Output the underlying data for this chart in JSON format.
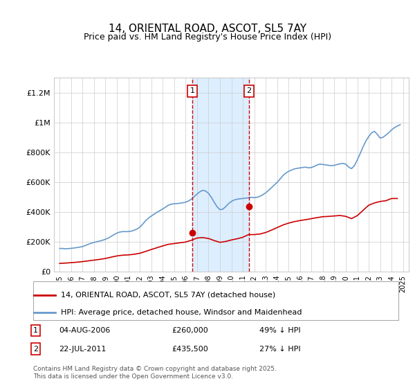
{
  "title": "14, ORIENTAL ROAD, ASCOT, SL5 7AY",
  "subtitle": "Price paid vs. HM Land Registry's House Price Index (HPI)",
  "ylabel": "",
  "xlabel": "",
  "ylim": [
    0,
    1300000
  ],
  "yticks": [
    0,
    200000,
    400000,
    600000,
    800000,
    1000000,
    1200000
  ],
  "ytick_labels": [
    "£0",
    "£200K",
    "£400K",
    "£600K",
    "£800K",
    "£1M",
    "£1.2M"
  ],
  "sale1_date": 2006.58,
  "sale1_price": 260000,
  "sale1_label": "1",
  "sale2_date": 2011.55,
  "sale2_price": 435500,
  "sale2_label": "2",
  "line_red_color": "#cc0000",
  "line_blue_color": "#6699cc",
  "shade_color": "#ddeeff",
  "vline_color": "#cc0000",
  "legend_entry1": "14, ORIENTAL ROAD, ASCOT, SL5 7AY (detached house)",
  "legend_entry2": "HPI: Average price, detached house, Windsor and Maidenhead",
  "annotation1": "1    04-AUG-2006         £260,000         49% ↓ HPI",
  "annotation2": "2    22-JUL-2011           £435,500         27% ↓ HPI",
  "footer": "Contains HM Land Registry data © Crown copyright and database right 2025.\nThis data is licensed under the Open Government Licence v3.0.",
  "background_color": "#ffffff",
  "grid_color": "#cccccc",
  "hpi_data_x": [
    1995.0,
    1995.25,
    1995.5,
    1995.75,
    1996.0,
    1996.25,
    1996.5,
    1996.75,
    1997.0,
    1997.25,
    1997.5,
    1997.75,
    1998.0,
    1998.25,
    1998.5,
    1998.75,
    1999.0,
    1999.25,
    1999.5,
    1999.75,
    2000.0,
    2000.25,
    2000.5,
    2000.75,
    2001.0,
    2001.25,
    2001.5,
    2001.75,
    2002.0,
    2002.25,
    2002.5,
    2002.75,
    2003.0,
    2003.25,
    2003.5,
    2003.75,
    2004.0,
    2004.25,
    2004.5,
    2004.75,
    2005.0,
    2005.25,
    2005.5,
    2005.75,
    2006.0,
    2006.25,
    2006.5,
    2006.75,
    2007.0,
    2007.25,
    2007.5,
    2007.75,
    2008.0,
    2008.25,
    2008.5,
    2008.75,
    2009.0,
    2009.25,
    2009.5,
    2009.75,
    2010.0,
    2010.25,
    2010.5,
    2010.75,
    2011.0,
    2011.25,
    2011.5,
    2011.75,
    2012.0,
    2012.25,
    2012.5,
    2012.75,
    2013.0,
    2013.25,
    2013.5,
    2013.75,
    2014.0,
    2014.25,
    2014.5,
    2014.75,
    2015.0,
    2015.25,
    2015.5,
    2015.75,
    2016.0,
    2016.25,
    2016.5,
    2016.75,
    2017.0,
    2017.25,
    2017.5,
    2017.75,
    2018.0,
    2018.25,
    2018.5,
    2018.75,
    2019.0,
    2019.25,
    2019.5,
    2019.75,
    2020.0,
    2020.25,
    2020.5,
    2020.75,
    2021.0,
    2021.25,
    2021.5,
    2021.75,
    2022.0,
    2022.25,
    2022.5,
    2022.75,
    2023.0,
    2023.25,
    2023.5,
    2023.75,
    2024.0,
    2024.25,
    2024.5,
    2024.75
  ],
  "hpi_data_y": [
    155000,
    155000,
    153000,
    154000,
    156000,
    158000,
    161000,
    164000,
    168000,
    175000,
    183000,
    190000,
    196000,
    200000,
    205000,
    210000,
    217000,
    225000,
    236000,
    248000,
    258000,
    265000,
    268000,
    268000,
    268000,
    271000,
    277000,
    285000,
    298000,
    318000,
    340000,
    358000,
    372000,
    385000,
    398000,
    408000,
    420000,
    432000,
    445000,
    452000,
    455000,
    456000,
    458000,
    461000,
    465000,
    473000,
    485000,
    502000,
    520000,
    535000,
    545000,
    540000,
    525000,
    498000,
    465000,
    435000,
    415000,
    418000,
    435000,
    455000,
    470000,
    480000,
    485000,
    488000,
    490000,
    492000,
    495000,
    498000,
    495000,
    498000,
    505000,
    515000,
    528000,
    545000,
    562000,
    580000,
    598000,
    620000,
    643000,
    660000,
    672000,
    680000,
    688000,
    692000,
    695000,
    698000,
    700000,
    695000,
    698000,
    705000,
    715000,
    720000,
    718000,
    715000,
    712000,
    710000,
    712000,
    718000,
    722000,
    725000,
    720000,
    700000,
    690000,
    710000,
    748000,
    790000,
    835000,
    875000,
    905000,
    930000,
    940000,
    920000,
    895000,
    900000,
    915000,
    930000,
    950000,
    965000,
    975000,
    985000
  ],
  "red_data_x": [
    1995.0,
    1995.5,
    1996.0,
    1996.5,
    1997.0,
    1997.5,
    1998.0,
    1998.5,
    1999.0,
    1999.5,
    2000.0,
    2000.5,
    2001.0,
    2001.5,
    2002.0,
    2002.5,
    2003.0,
    2003.5,
    2004.0,
    2004.5,
    2005.0,
    2005.5,
    2006.0,
    2006.5,
    2007.0,
    2007.5,
    2008.0,
    2008.5,
    2009.0,
    2009.5,
    2010.0,
    2010.5,
    2011.0,
    2011.5,
    2012.0,
    2012.5,
    2013.0,
    2013.5,
    2014.0,
    2014.5,
    2015.0,
    2015.5,
    2016.0,
    2016.5,
    2017.0,
    2017.5,
    2018.0,
    2018.5,
    2019.0,
    2019.5,
    2020.0,
    2020.5,
    2021.0,
    2021.5,
    2022.0,
    2022.5,
    2023.0,
    2023.5,
    2024.0,
    2024.5
  ],
  "red_data_y": [
    55000,
    57000,
    60000,
    63000,
    67000,
    72000,
    77000,
    82000,
    88000,
    97000,
    105000,
    110000,
    112000,
    116000,
    123000,
    135000,
    148000,
    160000,
    172000,
    183000,
    188000,
    193000,
    198000,
    210000,
    225000,
    228000,
    222000,
    208000,
    196000,
    202000,
    212000,
    220000,
    230000,
    248000,
    248000,
    252000,
    262000,
    278000,
    295000,
    312000,
    325000,
    335000,
    342000,
    348000,
    355000,
    362000,
    368000,
    370000,
    373000,
    376000,
    370000,
    355000,
    375000,
    410000,
    445000,
    460000,
    470000,
    475000,
    490000,
    490000
  ]
}
